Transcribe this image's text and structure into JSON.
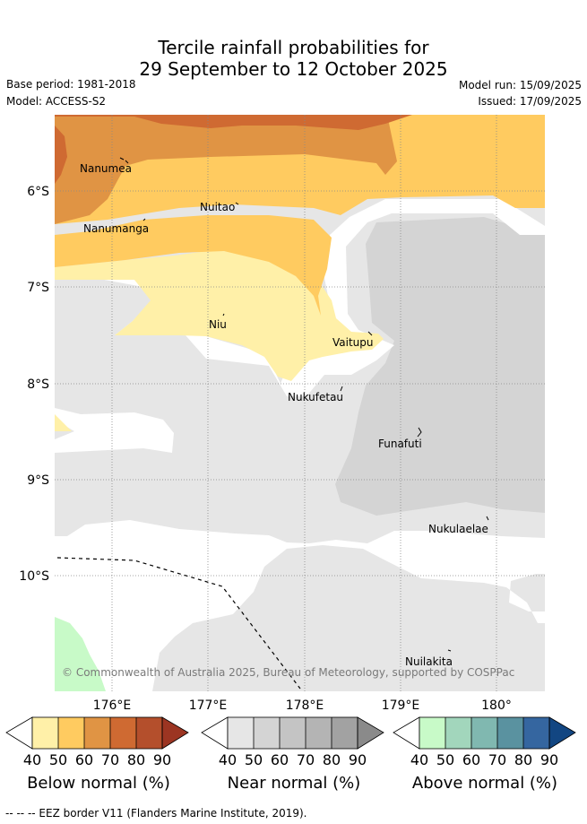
{
  "header": {
    "title_line1": "Tercile rainfall probabilities for",
    "title_line2": "29 September to 12 October 2025",
    "base_period": "Base period: 1981-2018",
    "model": "Model: ACCESS-S2",
    "model_run": "Model run: 15/09/2025",
    "issued": "Issued: 17/09/2025"
  },
  "map": {
    "lat_labels": [
      "6°S",
      "7°S",
      "8°S",
      "9°S",
      "10°S"
    ],
    "lon_labels": [
      "176°E",
      "177°E",
      "178°E",
      "179°E",
      "180°"
    ],
    "places": [
      "Nanumea",
      "Nuitao",
      "Nanumanga",
      "Niu",
      "Vaitupu",
      "Nukufetau",
      "Funafuti",
      "Nukulaelae",
      "Nuilakita"
    ],
    "copyright": "© Commonwealth of Australia 2025, Bureau of Meteorology, supported by COSPPac"
  },
  "legend": {
    "ticks": [
      "40",
      "50",
      "60",
      "70",
      "80",
      "90"
    ],
    "below": {
      "title": "Below normal (%)",
      "colors": [
        "#fff0a8",
        "#ffcb60",
        "#e09444",
        "#cf6a32",
        "#b44f2c",
        "#9c3522"
      ]
    },
    "near": {
      "title": "Near normal (%)",
      "colors": [
        "#e6e6e6",
        "#d4d4d4",
        "#c4c4c4",
        "#b4b4b4",
        "#a2a2a2",
        "#8a8a8a"
      ]
    },
    "above": {
      "title": "Above normal (%)",
      "colors": [
        "#c8fac8",
        "#a2d6bc",
        "#80b8b0",
        "#5a92a0",
        "#3566a0",
        "#124682"
      ]
    }
  },
  "footer": "--  --  -- EEZ border V11 (Flanders Marine Institute, 2019)."
}
